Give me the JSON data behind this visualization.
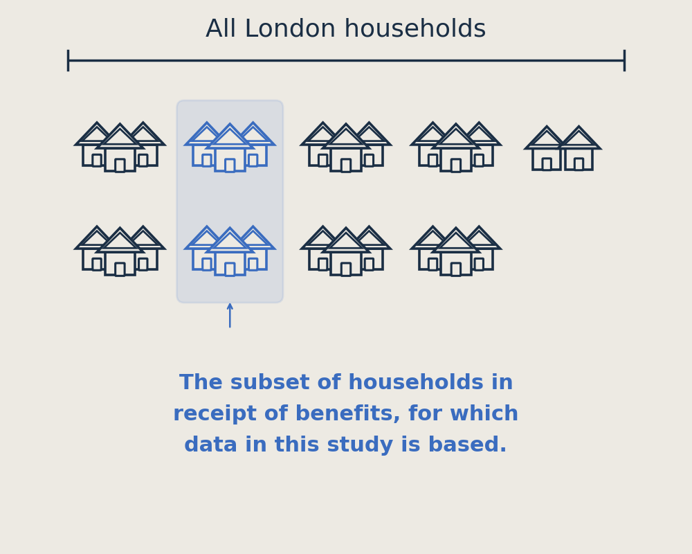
{
  "background_color": "#edeae3",
  "title": "All London households",
  "title_color": "#1a2e44",
  "title_fontsize": 26,
  "title_fontweight": "normal",
  "dark_house_color": "#1a2e44",
  "blue_house_color": "#3a6cbf",
  "highlight_box_color": "#4a7bd4",
  "annotation_color": "#3a6cbf",
  "annotation_text": "The subset of households in\nreceipt of benefits, for which\ndata in this study is based.",
  "annotation_fontsize": 22,
  "line_color": "#1a2e44",
  "line_lw": 2.5
}
